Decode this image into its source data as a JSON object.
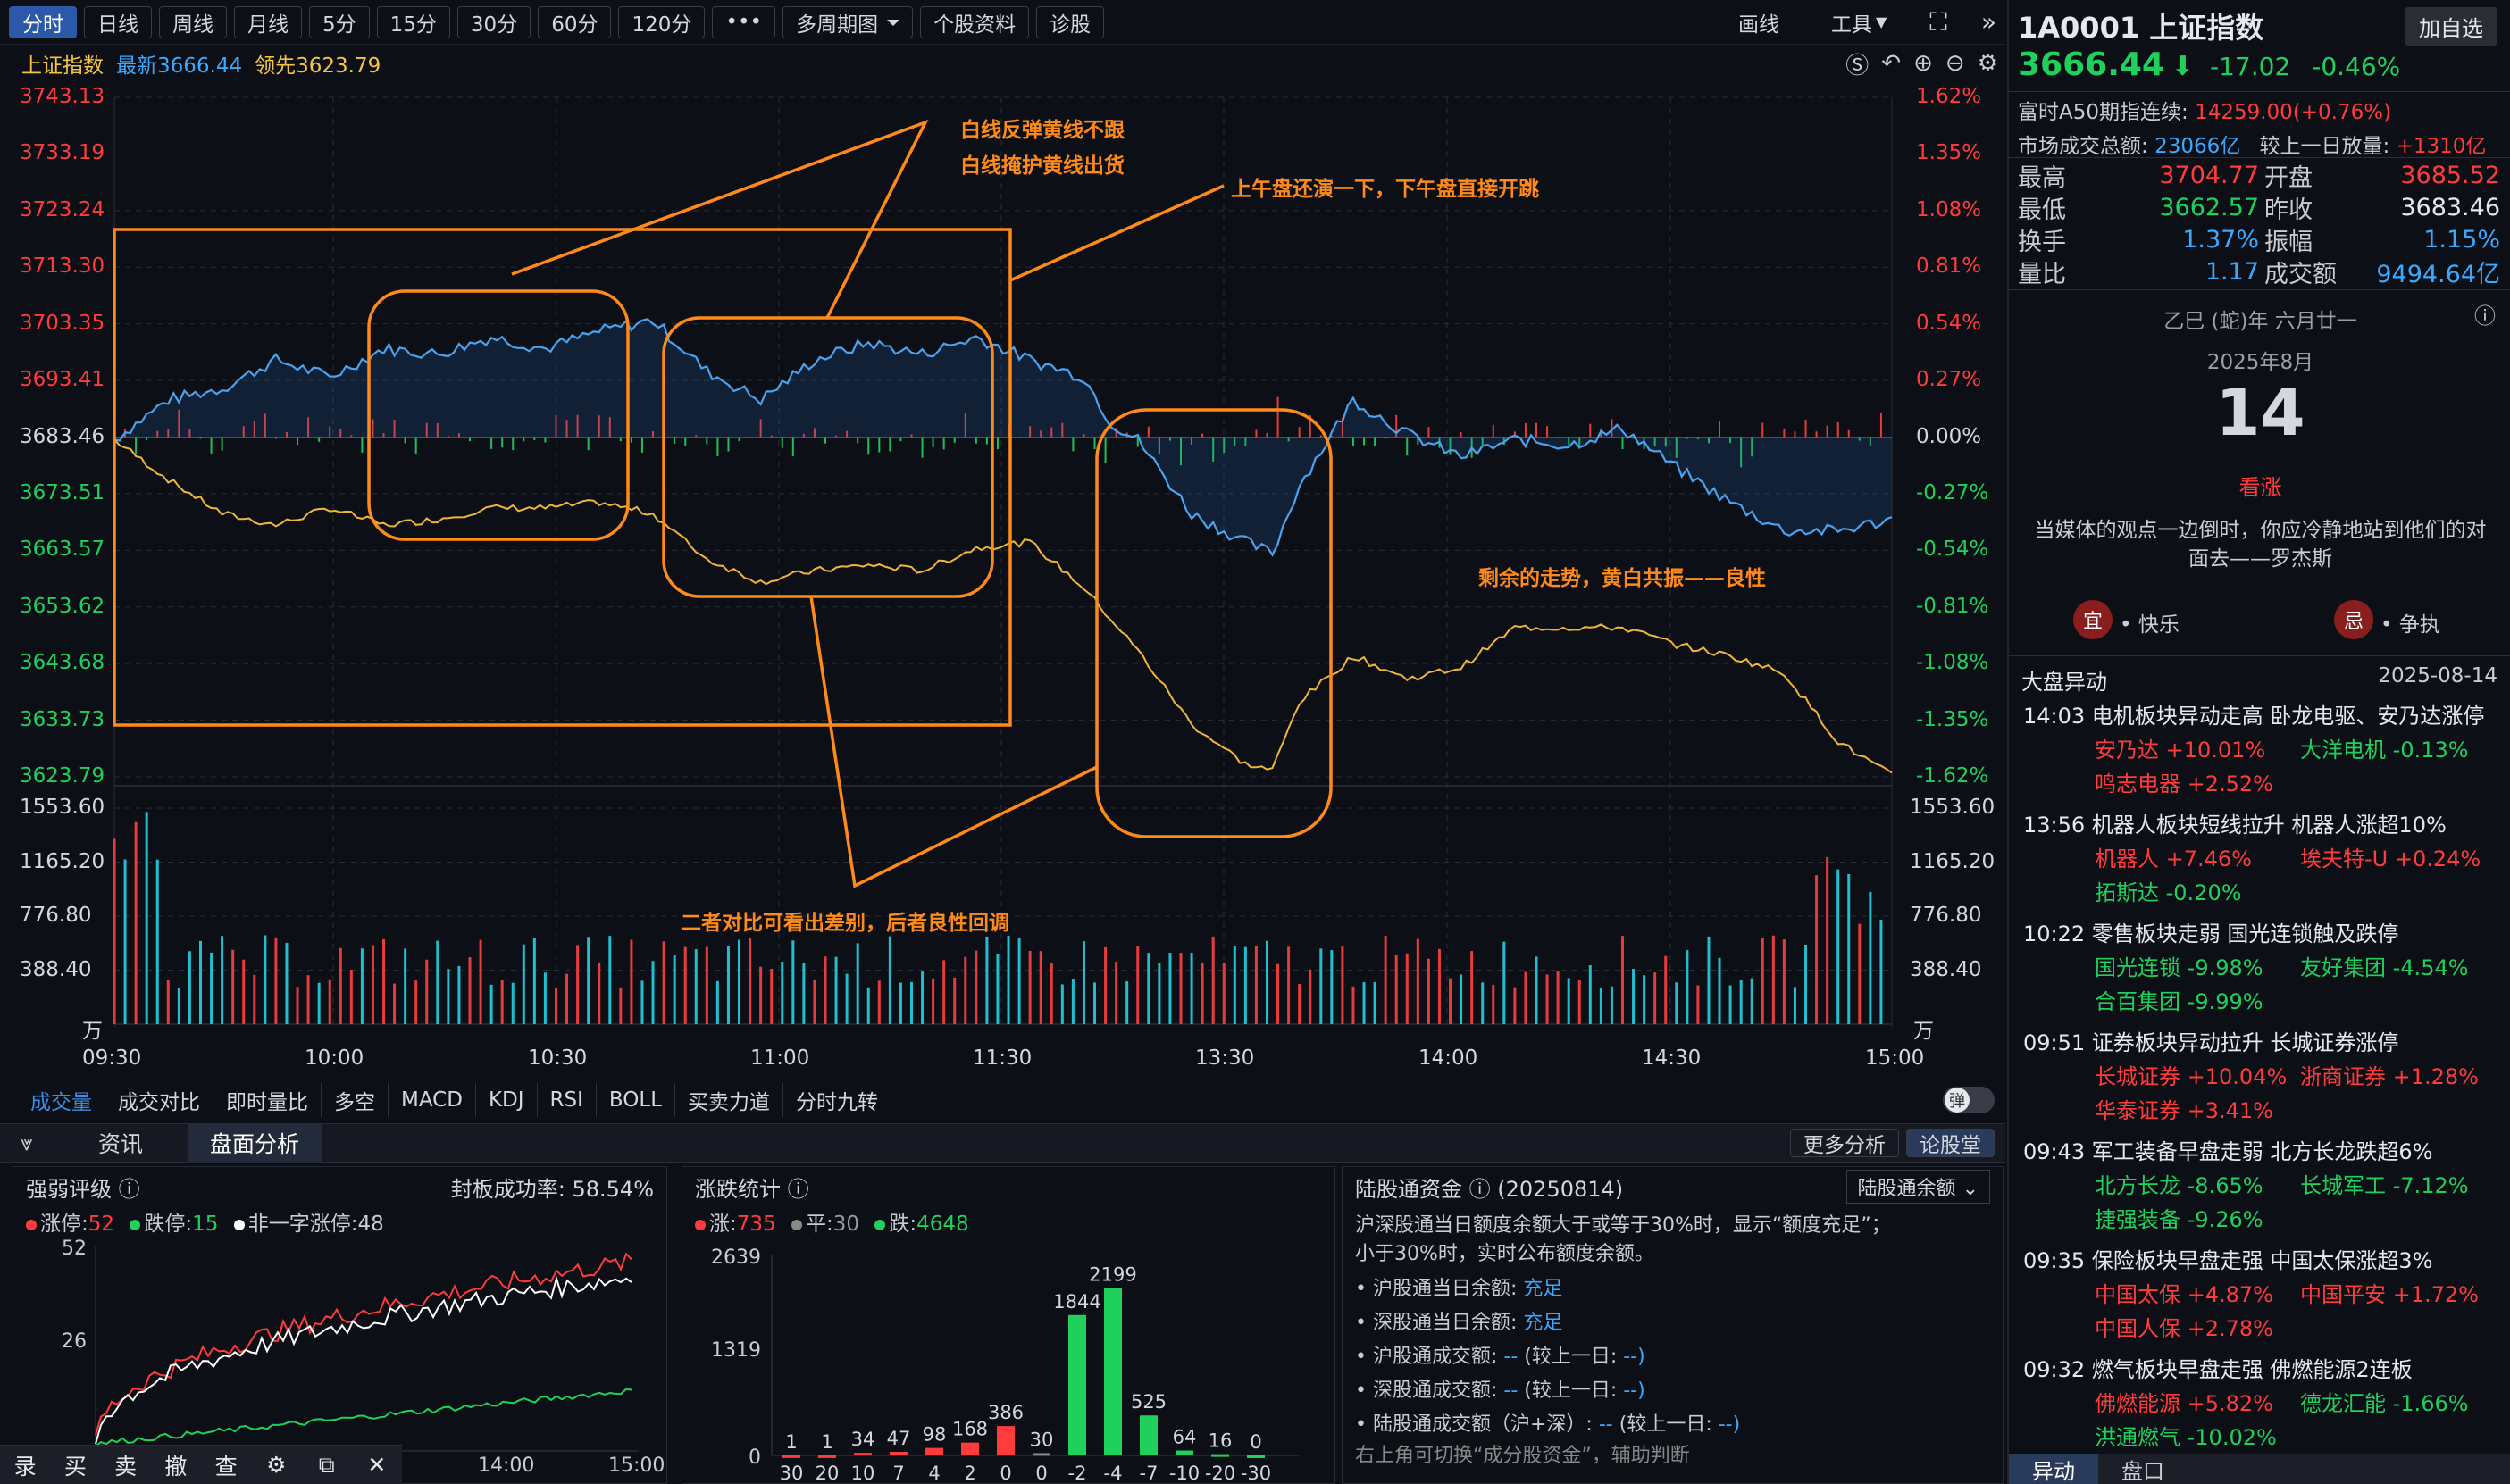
{
  "toolbar": {
    "tabs": [
      "分时",
      "日线",
      "周线",
      "月线",
      "5分",
      "15分",
      "30分",
      "60分",
      "120分",
      "•••",
      "多周期图",
      "个股资料",
      "诊股"
    ],
    "draw": "画线",
    "tools": "工具"
  },
  "info": {
    "name": "上证指数",
    "latest_label": "最新",
    "latest": "3666.44",
    "lead_label": "领先",
    "lead": "3623.79"
  },
  "chart": {
    "price_ticks": [
      "3743.13",
      "3733.19",
      "3723.24",
      "3713.30",
      "3703.35",
      "3693.41",
      "3683.46",
      "3673.51",
      "3663.57",
      "3653.62",
      "3643.68",
      "3633.73",
      "3623.79"
    ],
    "pct_ticks": [
      "1.62%",
      "1.35%",
      "1.08%",
      "0.81%",
      "0.54%",
      "0.27%",
      "0.00%",
      "-0.27%",
      "-0.54%",
      "-0.81%",
      "-1.08%",
      "-1.35%",
      "-1.62%"
    ],
    "vol_ticks": [
      "1553.60",
      "1165.20",
      "776.80",
      "388.40"
    ],
    "vol_unit": "万",
    "time_ticks": [
      "09:30",
      "10:00",
      "10:30",
      "11:00",
      "11:30",
      "13:30",
      "14:00",
      "14:30",
      "15:00"
    ],
    "annotations": {
      "a1": "白线反弹黄线不跟",
      "a2": "白线掩护黄线出货",
      "a3": "上午盘还演一下，下午盘直接开跳",
      "a4": "剩余的走势，黄白共振——良性",
      "a5": "二者对比可看出差别，后者良性回调"
    }
  },
  "indicators": [
    "成交量",
    "成交对比",
    "即时量比",
    "多空",
    "MACD",
    "KDJ",
    "RSI",
    "BOLL",
    "买卖力道",
    "分时九转"
  ],
  "toggle_label": "弹",
  "tabs2": [
    "资讯",
    "盘面分析"
  ],
  "more_analysis": "更多分析",
  "forum": "论股堂",
  "panel1": {
    "title": "强弱评级",
    "rate_label": "封板成功率:",
    "rate": "58.54%",
    "zt_label": "涨停:",
    "zt": "52",
    "dt_label": "跌停:",
    "dt": "15",
    "fyz_label": "非一字涨停:",
    "fyz": "48",
    "yticks": [
      "52",
      "26"
    ],
    "xticks": [
      "14:00",
      "15:00"
    ]
  },
  "panel2": {
    "title": "涨跌统计",
    "up_label": "涨:",
    "up": "735",
    "flat_label": "平:",
    "flat": "30",
    "down_label": "跌:",
    "down": "4648",
    "yticks": [
      "2639",
      "1319",
      "0"
    ]
  },
  "dist_chart": {
    "type": "bar",
    "categories": [
      "30",
      "20",
      "10",
      "7",
      "4",
      "2",
      "0",
      "0",
      "-2",
      "-4",
      "-7",
      "-10",
      "-20",
      "-30"
    ],
    "values": [
      1,
      1,
      34,
      47,
      98,
      168,
      386,
      30,
      1844,
      2199,
      525,
      64,
      16,
      0
    ],
    "ylim": [
      0,
      2639
    ]
  },
  "panel3": {
    "title": "陆股通资金",
    "date": "(20250814)",
    "select": "陆股通余额",
    "desc1": "沪深股通当日额度余额大于或等于30%时，显示“额度充足”；",
    "desc2": "小于30%时，实时公布额度余额。",
    "items": [
      {
        "label": "沪股通当日余额:",
        "value": "充足"
      },
      {
        "label": "深股通当日余额:",
        "value": "充足"
      },
      {
        "label": "沪股通成交额:",
        "value": "--",
        "extra": "(较上一日:",
        "extra_v": "--)"
      },
      {
        "label": "深股通成交额:",
        "value": "--",
        "extra": "(较上一日:",
        "extra_v": "--)"
      },
      {
        "label": "陆股通成交额（沪+深）:",
        "value": "--",
        "extra": "(较上一日:",
        "extra_v": "--)"
      }
    ],
    "footer": "右上角可切换“成分股资金”，辅助判断"
  },
  "bottomnav": [
    "录",
    "买",
    "卖",
    "撤",
    "查"
  ],
  "right": {
    "code": "1A0001",
    "name": "上证指数",
    "add": "加自选",
    "price": "3666.44",
    "chg": "-17.02",
    "pct": "-0.46%",
    "a50_label": "富时A50期指连续:",
    "a50": "14259.00(+0.76%)",
    "turnover_label": "市场成交总额:",
    "turnover": "23066亿",
    "prev_label": "较上一日放量:",
    "prev": "+1310亿",
    "stats": [
      {
        "l": "最高",
        "v": "3704.77",
        "l2": "开盘",
        "v2": "3685.52"
      },
      {
        "l": "最低",
        "v": "3662.57",
        "l2": "昨收",
        "v2": "3683.46"
      },
      {
        "l": "换手",
        "v": "1.37%",
        "l2": "振幅",
        "v2": "1.15%"
      },
      {
        "l": "量比",
        "v": "1.17",
        "l2": "成交额",
        "v2": "9494.64亿"
      }
    ],
    "lunar": "乙巳 (蛇)年 六月廿一",
    "month": "2025年8月",
    "day": "14",
    "mood": "看涨",
    "quote1": "当媒体的观点一边倒时，你应冷静地站到他们的对",
    "quote2": "面去——罗杰斯",
    "yi": "宜",
    "yi_v": "• 快乐",
    "ji": "忌",
    "ji_v": "• 争执",
    "news_title": "大盘异动",
    "news_date": "2025-08-14",
    "news": [
      {
        "t": "14:03 电机板块异动走高 卧龙电驱、安乃达涨停",
        "s": [
          [
            "安乃达",
            "+10.01%",
            "r"
          ],
          [
            "大洋电机",
            "-0.13%",
            "g"
          ],
          [
            "鸣志电器",
            "+2.52%",
            "r"
          ]
        ]
      },
      {
        "t": "13:56 机器人板块短线拉升 机器人涨超10%",
        "s": [
          [
            "机器人",
            "+7.46%",
            "r"
          ],
          [
            "埃夫特-U",
            "+0.24%",
            "r"
          ],
          [
            "拓斯达",
            "-0.20%",
            "g"
          ]
        ]
      },
      {
        "t": "10:22 零售板块走弱 国光连锁触及跌停",
        "s": [
          [
            "国光连锁",
            "-9.98%",
            "g"
          ],
          [
            "友好集团",
            "-4.54%",
            "g"
          ],
          [
            "合百集团",
            "-9.99%",
            "g"
          ]
        ]
      },
      {
        "t": "09:51 证券板块异动拉升 长城证券涨停",
        "s": [
          [
            "长城证券",
            "+10.04%",
            "r"
          ],
          [
            "浙商证券",
            "+1.28%",
            "r"
          ],
          [
            "华泰证券",
            "+3.41%",
            "r"
          ]
        ]
      },
      {
        "t": "09:43 军工装备早盘走弱 北方长龙跌超6%",
        "s": [
          [
            "北方长龙",
            "-8.65%",
            "g"
          ],
          [
            "长城军工",
            "-7.12%",
            "g"
          ],
          [
            "捷强装备",
            "-9.26%",
            "g"
          ]
        ]
      },
      {
        "t": "09:35 保险板块早盘走强 中国太保涨超3%",
        "s": [
          [
            "中国太保",
            "+4.87%",
            "r"
          ],
          [
            "中国平安",
            "+1.72%",
            "r"
          ],
          [
            "中国人保",
            "+2.78%",
            "r"
          ]
        ]
      },
      {
        "t": "09:32 燃气板块早盘走强 佛燃能源2连板",
        "s": [
          [
            "佛燃能源",
            "+5.82%",
            "r"
          ],
          [
            "德龙汇能",
            "-1.66%",
            "g"
          ],
          [
            "洪通燃气",
            "-10.02%",
            "g"
          ]
        ]
      }
    ],
    "btabs": [
      "异动",
      "盘口"
    ]
  }
}
